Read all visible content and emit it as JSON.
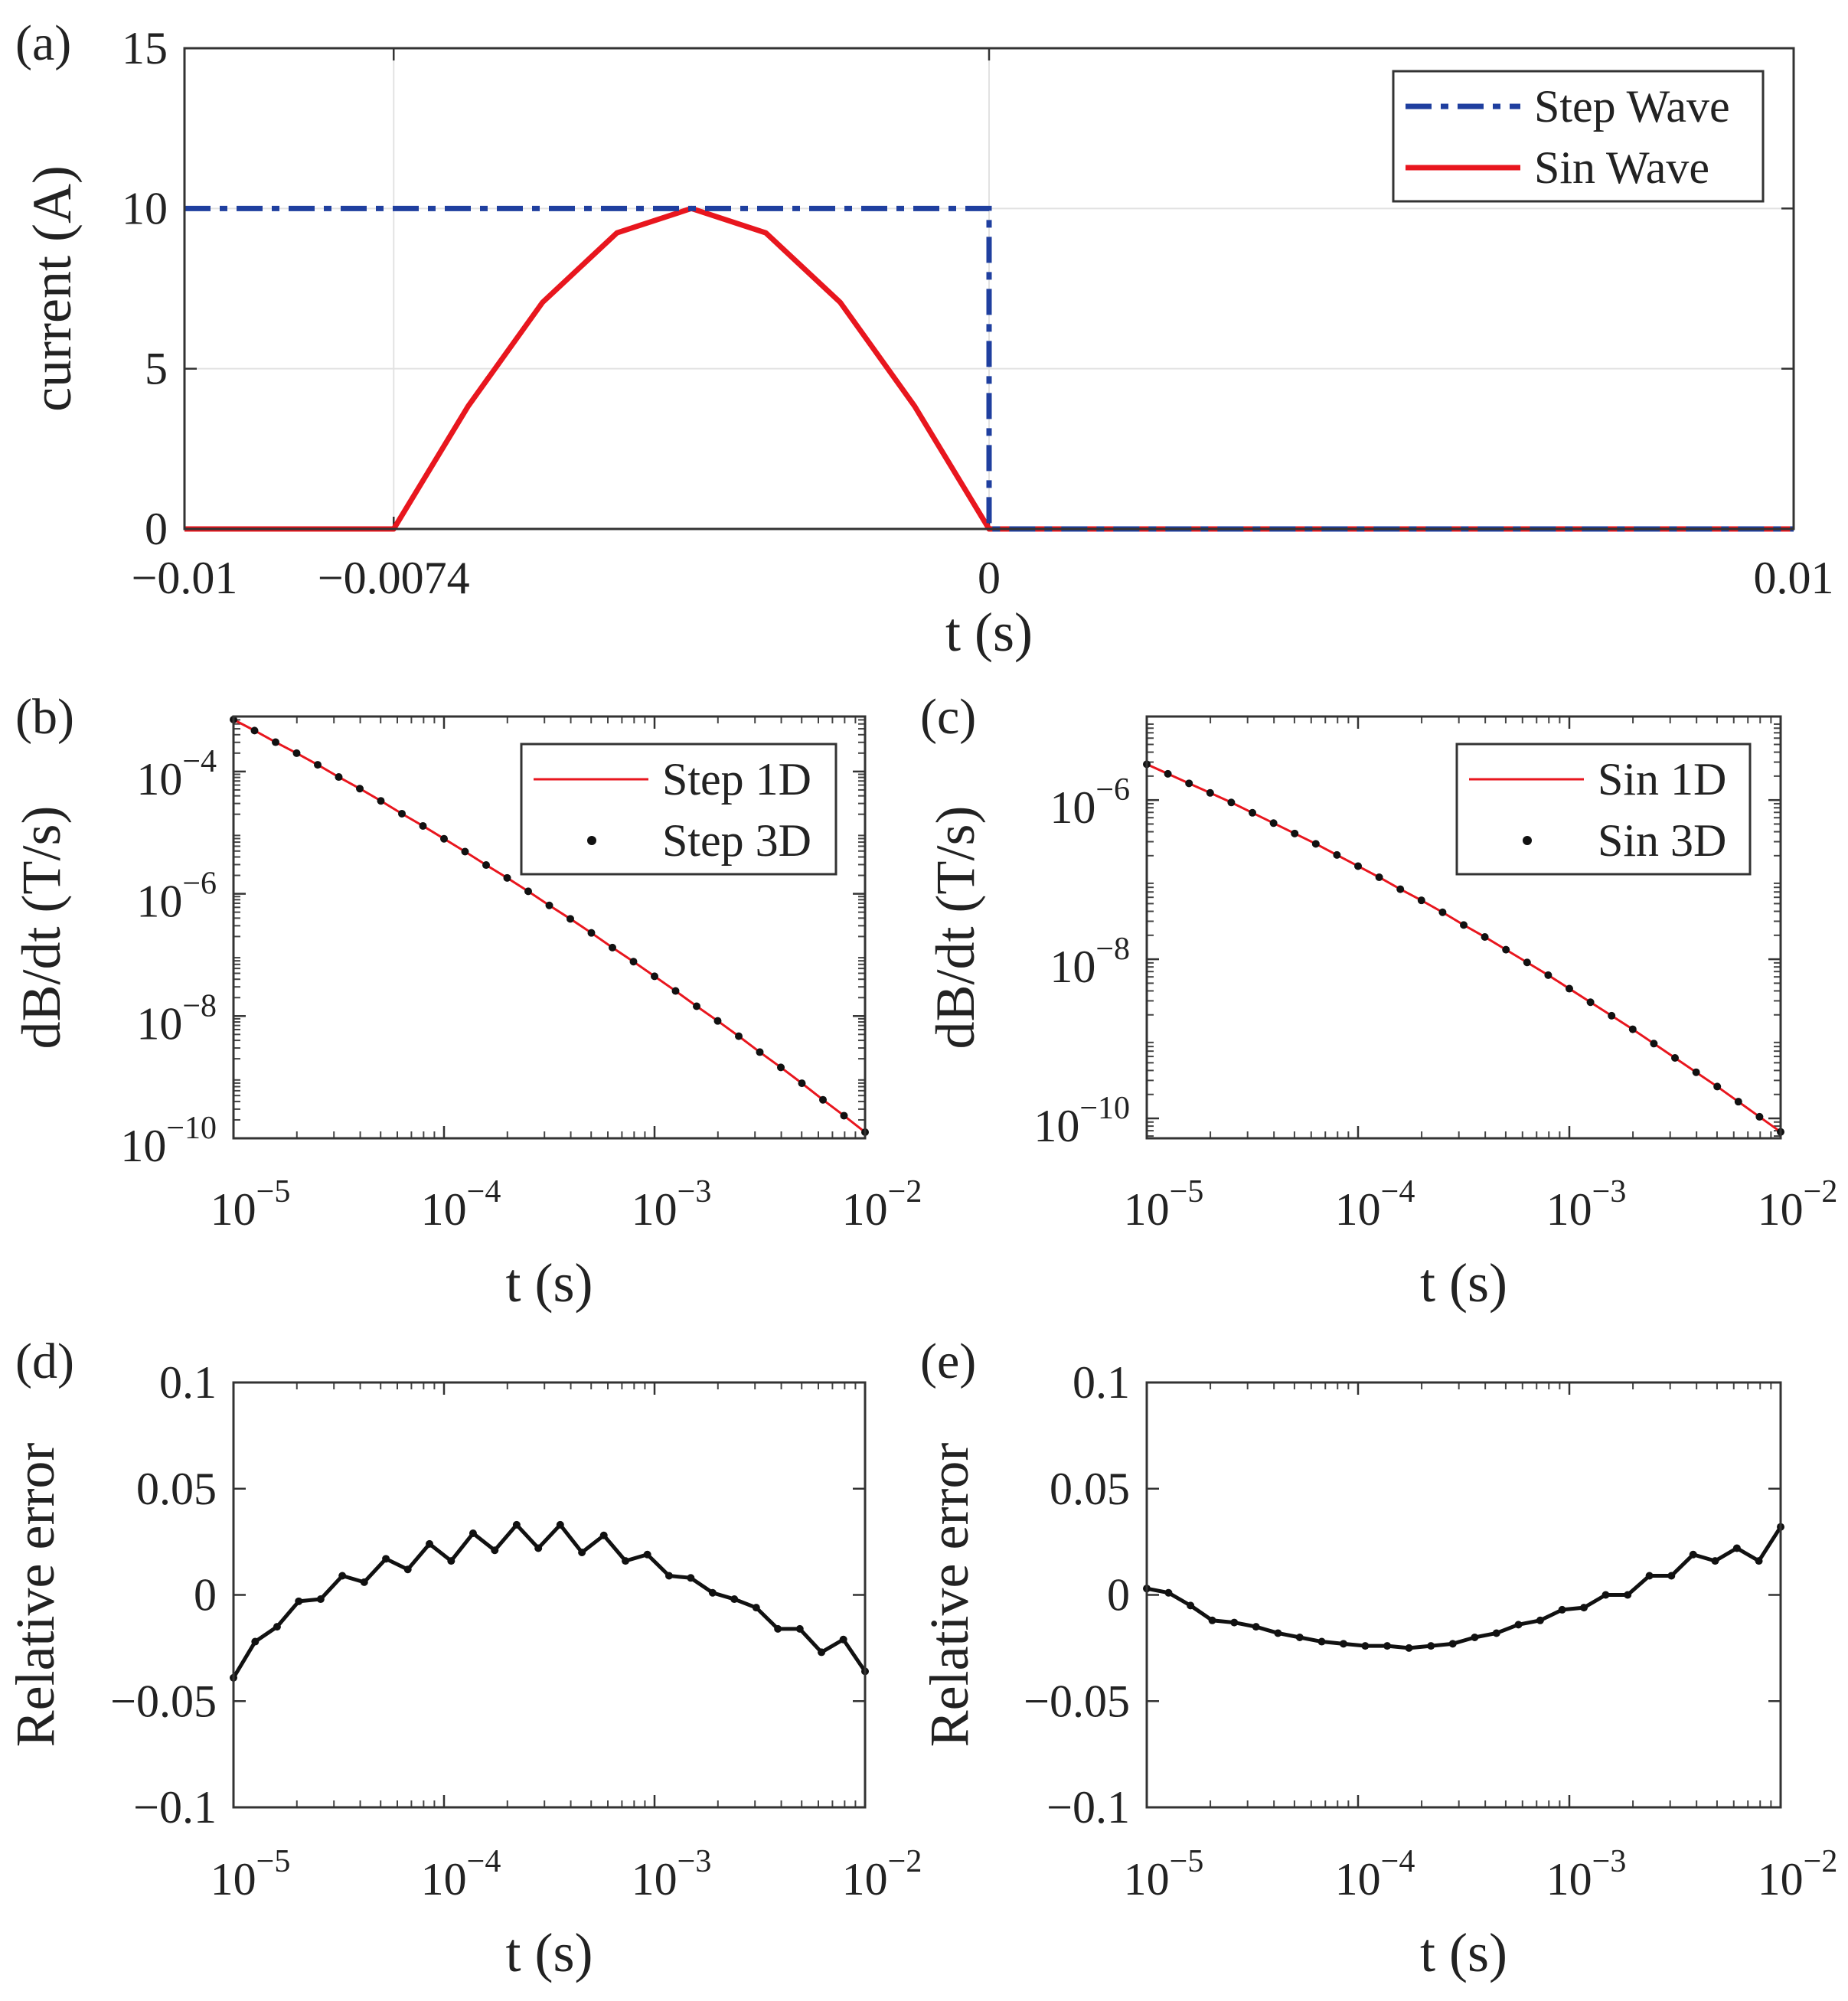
{
  "chart_data": [
    {
      "panel": "(a)",
      "type": "line",
      "xlabel": "t (s)",
      "ylabel": "current (A)",
      "xlim": [
        -0.01,
        0.01
      ],
      "ylim": [
        0,
        15
      ],
      "grid": true,
      "xticks": [
        -0.01,
        -0.0074,
        0,
        0.01
      ],
      "xtick_labels": [
        "−0.01",
        "−0.0074",
        "0",
        "0.01"
      ],
      "yticks": [
        0,
        5,
        10,
        15
      ],
      "ytick_labels": [
        "0",
        "5",
        "10",
        "15"
      ],
      "legend": {
        "position": "top-right",
        "entries": [
          "Step Wave",
          "Sin Wave"
        ]
      },
      "series": [
        {
          "name": "Step Wave",
          "color": "#1f3f9f",
          "style": "dash-dot",
          "x": [
            -0.01,
            0,
            0,
            0.01
          ],
          "y": [
            10,
            10,
            0,
            0
          ]
        },
        {
          "name": "Sin Wave",
          "color": "#e8161e",
          "style": "solid",
          "x": [
            -0.01,
            -0.0074,
            -0.006475,
            -0.00555,
            -0.004625,
            -0.0037,
            -0.002775,
            -0.00185,
            -0.000925,
            0,
            0.01
          ],
          "y": [
            0,
            0,
            3.83,
            7.07,
            9.24,
            10,
            9.24,
            7.07,
            3.83,
            0,
            0
          ]
        }
      ]
    },
    {
      "panel": "(b)",
      "type": "line",
      "xscale": "log",
      "yscale": "log",
      "xlabel": "t (s)",
      "ylabel": "dB/dt (T/s)",
      "xlim_log10": [
        -5,
        -2
      ],
      "ylim_log10": [
        -10,
        -3.1
      ],
      "xticks_log10": [
        -5,
        -4,
        -3,
        -2
      ],
      "xtick_labels": [
        {
          "base": "10",
          "exp": "−5"
        },
        {
          "base": "10",
          "exp": "−4"
        },
        {
          "base": "10",
          "exp": "−3"
        },
        {
          "base": "10",
          "exp": "−2"
        }
      ],
      "yticks_log10": [
        -10,
        -8,
        -6,
        -4
      ],
      "ytick_labels": [
        {
          "base": "10",
          "exp": "−10"
        },
        {
          "base": "10",
          "exp": "−8"
        },
        {
          "base": "10",
          "exp": "−6"
        },
        {
          "base": "10",
          "exp": "−4"
        }
      ],
      "legend": {
        "position": "top-right",
        "entries": [
          "Step 1D",
          "Step 3D"
        ]
      },
      "series": [
        {
          "name": "Step 1D",
          "color": "#e8161e",
          "style": "solid"
        },
        {
          "name": "Step 3D",
          "color": "#111111",
          "style": "dots"
        }
      ],
      "x_log10": [
        -5,
        -4.9,
        -4.8,
        -4.7,
        -4.6,
        -4.5,
        -4.4,
        -4.3,
        -4.2,
        -4.1,
        -4,
        -3.9,
        -3.8,
        -3.7,
        -3.6,
        -3.5,
        -3.4,
        -3.3,
        -3.2,
        -3.1,
        -3,
        -2.9,
        -2.8,
        -2.7,
        -2.6,
        -2.5,
        -2.4,
        -2.3,
        -2.2,
        -2.1,
        -2
      ],
      "y_log10": [
        -3.15,
        -3.33,
        -3.52,
        -3.7,
        -3.89,
        -4.09,
        -4.28,
        -4.48,
        -4.69,
        -4.89,
        -5.1,
        -5.31,
        -5.53,
        -5.74,
        -5.96,
        -6.19,
        -6.41,
        -6.64,
        -6.88,
        -7.11,
        -7.35,
        -7.59,
        -7.84,
        -8.08,
        -8.33,
        -8.59,
        -8.84,
        -9.1,
        -9.37,
        -9.63,
        -9.9
      ]
    },
    {
      "panel": "(c)",
      "type": "line",
      "xscale": "log",
      "yscale": "log",
      "xlabel": "t (s)",
      "ylabel": "dB/dt (T/s)",
      "xlim_log10": [
        -5,
        -2
      ],
      "ylim_log10": [
        -10.25,
        -4.95
      ],
      "xticks_log10": [
        -5,
        -4,
        -3,
        -2
      ],
      "xtick_labels": [
        {
          "base": "10",
          "exp": "−5"
        },
        {
          "base": "10",
          "exp": "−4"
        },
        {
          "base": "10",
          "exp": "−3"
        },
        {
          "base": "10",
          "exp": "−2"
        }
      ],
      "yticks_log10": [
        -10,
        -8,
        -6
      ],
      "ytick_labels": [
        {
          "base": "10",
          "exp": "−10"
        },
        {
          "base": "10",
          "exp": "−8"
        },
        {
          "base": "10",
          "exp": "−6"
        }
      ],
      "legend": {
        "position": "top-right",
        "entries": [
          "Sin 1D",
          "Sin 3D"
        ]
      },
      "series": [
        {
          "name": "Sin 1D",
          "color": "#e8161e",
          "style": "solid"
        },
        {
          "name": "Sin 3D",
          "color": "#111111",
          "style": "dots"
        }
      ],
      "x_log10": [
        -5,
        -4.9,
        -4.8,
        -4.7,
        -4.6,
        -4.5,
        -4.4,
        -4.3,
        -4.2,
        -4.1,
        -4,
        -3.9,
        -3.8,
        -3.7,
        -3.6,
        -3.5,
        -3.4,
        -3.3,
        -3.2,
        -3.1,
        -3,
        -2.9,
        -2.8,
        -2.7,
        -2.6,
        -2.5,
        -2.4,
        -2.3,
        -2.2,
        -2.1,
        -2
      ],
      "y_log10": [
        -5.55,
        -5.67,
        -5.79,
        -5.91,
        -6.03,
        -6.16,
        -6.29,
        -6.42,
        -6.55,
        -6.69,
        -6.83,
        -6.97,
        -7.12,
        -7.26,
        -7.41,
        -7.57,
        -7.72,
        -7.88,
        -8.04,
        -8.2,
        -8.37,
        -8.54,
        -8.71,
        -8.88,
        -9.06,
        -9.24,
        -9.42,
        -9.6,
        -9.79,
        -9.98,
        -10.17
      ]
    },
    {
      "panel": "(d)",
      "type": "line",
      "xscale": "log",
      "xlabel": "t (s)",
      "ylabel": "Relative error",
      "xlim_log10": [
        -5,
        -2
      ],
      "ylim": [
        -0.1,
        0.1
      ],
      "xticks_log10": [
        -5,
        -4,
        -3,
        -2
      ],
      "xtick_labels": [
        {
          "base": "10",
          "exp": "−5"
        },
        {
          "base": "10",
          "exp": "−4"
        },
        {
          "base": "10",
          "exp": "−3"
        },
        {
          "base": "10",
          "exp": "−2"
        }
      ],
      "yticks": [
        -0.1,
        -0.05,
        0,
        0.05,
        0.1
      ],
      "ytick_labels": [
        "−0.1",
        "−0.05",
        "0",
        "0.05",
        "0.1"
      ],
      "series": [
        {
          "name": "Relative error",
          "color": "#111111",
          "style": "solid-dots"
        }
      ],
      "x_log10": [
        -5,
        -4.897,
        -4.793,
        -4.69,
        -4.586,
        -4.483,
        -4.379,
        -4.276,
        -4.172,
        -4.069,
        -3.966,
        -3.862,
        -3.759,
        -3.655,
        -3.552,
        -3.448,
        -3.345,
        -3.241,
        -3.138,
        -3.034,
        -2.931,
        -2.828,
        -2.724,
        -2.621,
        -2.517,
        -2.414,
        -2.31,
        -2.207,
        -2.103,
        -2
      ],
      "y": [
        -0.039,
        -0.022,
        -0.015,
        -0.003,
        -0.002,
        0.009,
        0.006,
        0.017,
        0.012,
        0.024,
        0.016,
        0.029,
        0.021,
        0.033,
        0.022,
        0.033,
        0.02,
        0.028,
        0.016,
        0.019,
        0.009,
        0.008,
        0.001,
        -0.002,
        -0.006,
        -0.016,
        -0.016,
        -0.027,
        -0.021,
        -0.036
      ]
    },
    {
      "panel": "(e)",
      "type": "line",
      "xscale": "log",
      "xlabel": "t (s)",
      "ylabel": "Relative error",
      "xlim_log10": [
        -5,
        -2
      ],
      "ylim": [
        -0.1,
        0.1
      ],
      "xticks_log10": [
        -5,
        -4,
        -3,
        -2
      ],
      "xtick_labels": [
        {
          "base": "10",
          "exp": "−5"
        },
        {
          "base": "10",
          "exp": "−4"
        },
        {
          "base": "10",
          "exp": "−3"
        },
        {
          "base": "10",
          "exp": "−2"
        }
      ],
      "yticks": [
        -0.1,
        -0.05,
        0,
        0.05,
        0.1
      ],
      "ytick_labels": [
        "−0.1",
        "−0.05",
        "0",
        "0.05",
        "0.1"
      ],
      "series": [
        {
          "name": "Relative error",
          "color": "#111111",
          "style": "solid-dots"
        }
      ],
      "x_log10": [
        -5,
        -4.897,
        -4.793,
        -4.69,
        -4.586,
        -4.483,
        -4.379,
        -4.276,
        -4.172,
        -4.069,
        -3.966,
        -3.862,
        -3.759,
        -3.655,
        -3.552,
        -3.448,
        -3.345,
        -3.241,
        -3.138,
        -3.034,
        -2.931,
        -2.828,
        -2.724,
        -2.621,
        -2.517,
        -2.414,
        -2.31,
        -2.207,
        -2.103,
        -2
      ],
      "y": [
        0.003,
        0.001,
        -0.005,
        -0.012,
        -0.013,
        -0.015,
        -0.018,
        -0.02,
        -0.022,
        -0.023,
        -0.024,
        -0.024,
        -0.025,
        -0.024,
        -0.023,
        -0.02,
        -0.018,
        -0.014,
        -0.012,
        -0.007,
        -0.006,
        0.0,
        0.0,
        0.009,
        0.009,
        0.019,
        0.016,
        0.022,
        0.016,
        0.032
      ]
    }
  ]
}
